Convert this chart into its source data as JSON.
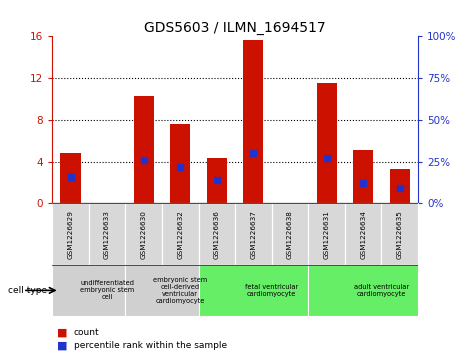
{
  "title": "GDS5603 / ILMN_1694517",
  "samples": [
    "GSM1226629",
    "GSM1226633",
    "GSM1226630",
    "GSM1226632",
    "GSM1226636",
    "GSM1226637",
    "GSM1226638",
    "GSM1226631",
    "GSM1226634",
    "GSM1226635"
  ],
  "count_values": [
    4.8,
    0.0,
    10.3,
    7.6,
    4.3,
    15.6,
    0.0,
    11.5,
    5.1,
    3.3
  ],
  "percentile_values": [
    16.0,
    0.0,
    26.0,
    22.0,
    14.0,
    30.0,
    0.0,
    27.0,
    12.0,
    9.0
  ],
  "ylim_left": [
    0,
    16
  ],
  "ylim_right": [
    0,
    100
  ],
  "yticks_left": [
    0,
    4,
    8,
    12,
    16
  ],
  "yticks_right": [
    0,
    25,
    50,
    75,
    100
  ],
  "bar_color": "#cc1100",
  "percentile_color": "#2233cc",
  "bg_color": "#d8d8d8",
  "cell_types": [
    {
      "label": "undifferentiated\nembryonic stem\ncell",
      "start": 0,
      "end": 2,
      "bg": "#d0d0d0"
    },
    {
      "label": "embryonic stem\ncell-derived\nventricular\ncardiomyocyte",
      "start": 2,
      "end": 4,
      "bg": "#d0d0d0"
    },
    {
      "label": "fetal ventricular\ncardiomyocyte",
      "start": 4,
      "end": 7,
      "bg": "#66ee66"
    },
    {
      "label": "adult ventricular\ncardiomyocyte",
      "start": 7,
      "end": 10,
      "bg": "#66ee66"
    }
  ],
  "bar_width": 0.55,
  "percentile_marker_size": 5,
  "grid_color": "black",
  "left_tick_color": "#cc1100",
  "right_tick_color": "#2233cc",
  "cell_type_row_label": "cell type",
  "legend_count_label": "count",
  "legend_percentile_label": "percentile rank within the sample"
}
